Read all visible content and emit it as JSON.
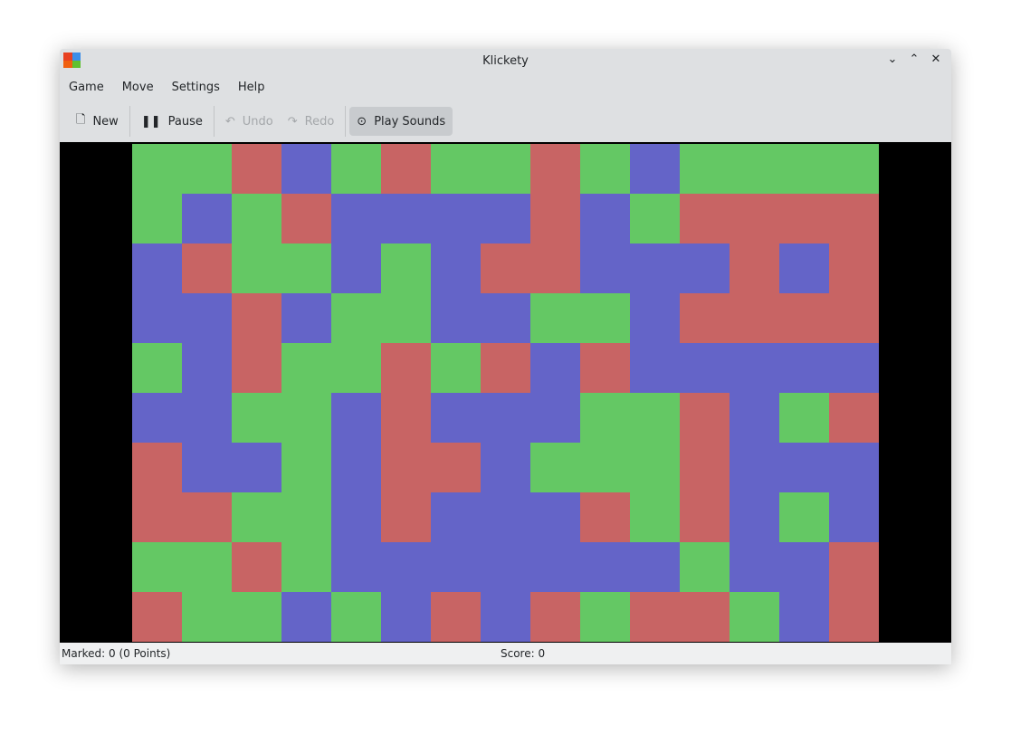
{
  "window": {
    "title": "Klickety"
  },
  "menu": [
    "Game",
    "Move",
    "Settings",
    "Help"
  ],
  "toolbar": {
    "new": "New",
    "pause": "Pause",
    "undo": "Undo",
    "redo": "Redo",
    "sounds": "Play Sounds"
  },
  "colors": {
    "G": "#64c864",
    "R": "#c86464",
    "B": "#6464c8"
  },
  "board": [
    "GGRBGRGGRGBGGGG",
    "GBGRBBBBRBGRRRR",
    "BRGGBGBRRBBBRBR",
    "BBRBGGBBGGBRRRR",
    "GBRGGRGRBRBBBBB",
    "BBGGBRBBBGGRBGR",
    "RBBGBRRBGGGRBBB",
    "RRGGBRBBBRGRBGB",
    "GGRGBBBBBBBGBBR",
    "RGGBGBRBRGRRGBR"
  ],
  "status": {
    "marked": "Marked: 0 (0 Points)",
    "score": "Score: 0"
  }
}
